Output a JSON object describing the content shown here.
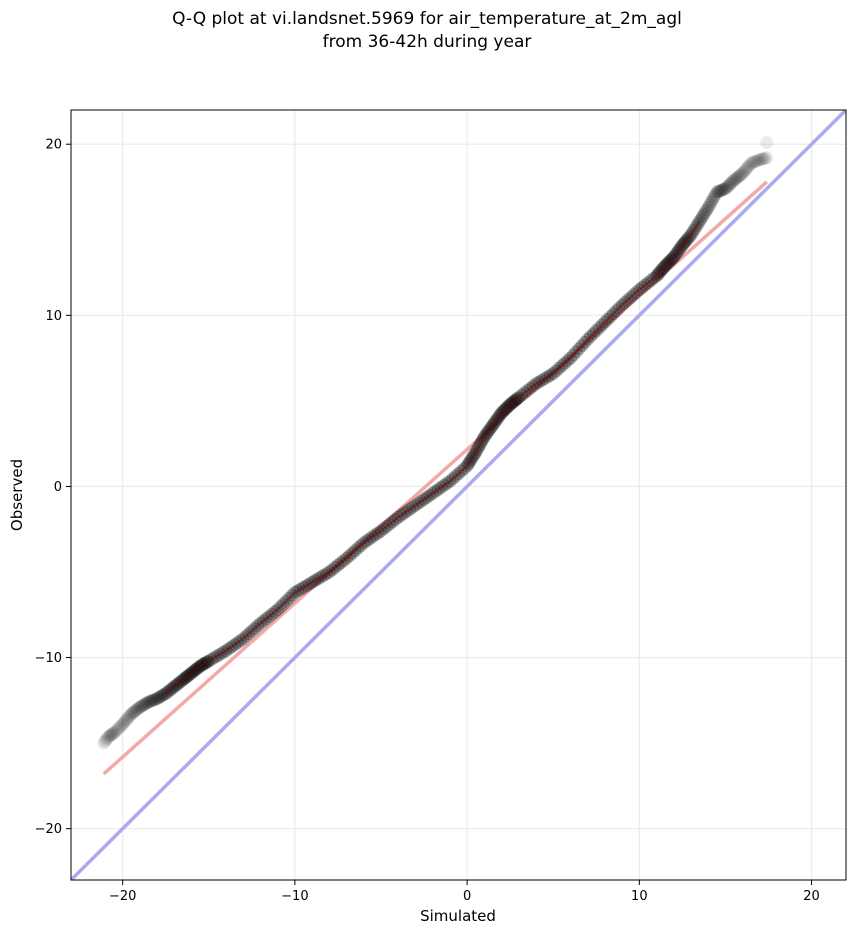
{
  "chart_data": {
    "type": "scatter",
    "title_lines": [
      "Q-Q plot at vi.landsnet.5969 for air_temperature_at_2m_agl",
      "from 36-42h during year"
    ],
    "xlabel": "Simulated",
    "ylabel": "Observed",
    "xlim": [
      -23,
      22
    ],
    "ylim": [
      -23,
      22
    ],
    "xticks": [
      -20,
      -10,
      0,
      10,
      20
    ],
    "yticks": [
      -20,
      -10,
      0,
      10,
      20
    ],
    "xtick_labels": [
      "−20",
      "−10",
      "0",
      "10",
      "20"
    ],
    "ytick_labels": [
      "−20",
      "−10",
      "0",
      "10",
      "20"
    ],
    "grid": true,
    "reference_line": {
      "x": [
        -23,
        22
      ],
      "y": [
        -23,
        22
      ],
      "color": "#aaaaf0"
    },
    "fit_line": {
      "x": [
        -21.1,
        17.4
      ],
      "y": [
        -16.8,
        17.8
      ],
      "color": "#f4a9a9"
    },
    "quantile_curve": {
      "x": [
        -21.1,
        -20.8,
        -20.5,
        -20.0,
        -19.5,
        -19.0,
        -18.5,
        -18.0,
        -17.5,
        -17.0,
        -16.5,
        -16.0,
        -15.5,
        -15.0,
        -14.0,
        -13.0,
        -12.0,
        -11.0,
        -10.0,
        -9.0,
        -8.0,
        -7.0,
        -6.0,
        -5.0,
        -4.0,
        -3.0,
        -2.0,
        -1.0,
        0.0,
        0.5,
        1.0,
        1.5,
        2.0,
        2.5,
        3.0,
        4.0,
        5.0,
        6.0,
        7.0,
        8.0,
        9.0,
        10.0,
        11.0,
        11.5,
        12.0,
        12.5,
        13.0,
        13.5,
        14.0,
        14.5,
        15.0,
        15.5,
        16.0,
        16.5,
        17.0,
        17.4
      ],
      "y": [
        -15.0,
        -14.6,
        -14.4,
        -13.9,
        -13.3,
        -12.9,
        -12.6,
        -12.4,
        -12.1,
        -11.7,
        -11.3,
        -10.9,
        -10.5,
        -10.2,
        -9.6,
        -8.9,
        -8.0,
        -7.2,
        -6.2,
        -5.6,
        -5.0,
        -4.2,
        -3.3,
        -2.6,
        -1.8,
        -1.1,
        -0.4,
        0.3,
        1.2,
        2.0,
        2.9,
        3.6,
        4.3,
        4.8,
        5.2,
        6.0,
        6.6,
        7.5,
        8.6,
        9.6,
        10.6,
        11.5,
        12.3,
        12.9,
        13.4,
        14.1,
        14.7,
        15.5,
        16.3,
        17.2,
        17.4,
        17.9,
        18.3,
        18.9,
        19.1,
        19.2
      ],
      "color": "#000000"
    },
    "outlier_points": [
      {
        "x": 17.4,
        "y": 20.1
      }
    ]
  }
}
